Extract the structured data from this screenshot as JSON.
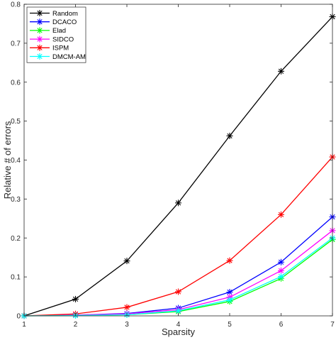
{
  "chart_data": {
    "type": "line",
    "title": "",
    "xlabel": "Sparsity",
    "ylabel": "Relative # of errors",
    "xlim": [
      1,
      7
    ],
    "ylim": [
      0,
      0.8
    ],
    "x_ticks": [
      1,
      2,
      3,
      4,
      5,
      6,
      7
    ],
    "y_ticks": [
      0,
      0.1,
      0.2,
      0.3,
      0.4,
      0.5,
      0.6,
      0.7,
      0.8
    ],
    "x_tick_labels": [
      "1",
      "2",
      "3",
      "4",
      "5",
      "6",
      "7"
    ],
    "y_tick_labels": [
      "0",
      "0.1",
      "0.2",
      "0.3",
      "0.4",
      "0.5",
      "0.6",
      "0.7",
      "0.8"
    ],
    "grid": false,
    "legend_position": "top-left",
    "marker": "asterisk",
    "x": [
      1,
      2,
      3,
      4,
      5,
      6,
      7
    ],
    "series": [
      {
        "name": "Random",
        "color": "#000000",
        "values": [
          0,
          0.043,
          0.141,
          0.29,
          0.462,
          0.628,
          0.768
        ]
      },
      {
        "name": "DCACO",
        "color": "#0000ff",
        "values": [
          0,
          0.002,
          0.006,
          0.02,
          0.061,
          0.138,
          0.254
        ]
      },
      {
        "name": "Elad",
        "color": "#00ff00",
        "values": [
          0,
          0.001,
          0.003,
          0.011,
          0.037,
          0.096,
          0.196
        ]
      },
      {
        "name": "SIDCO",
        "color": "#ff00ff",
        "values": [
          0,
          0.002,
          0.005,
          0.016,
          0.048,
          0.116,
          0.219
        ]
      },
      {
        "name": "ISPM",
        "color": "#ff0000",
        "values": [
          0,
          0.005,
          0.022,
          0.062,
          0.142,
          0.26,
          0.408
        ]
      },
      {
        "name": "DMCM-AM",
        "color": "#00ffff",
        "values": [
          0,
          0.001,
          0.003,
          0.013,
          0.041,
          0.101,
          0.2
        ]
      }
    ]
  }
}
